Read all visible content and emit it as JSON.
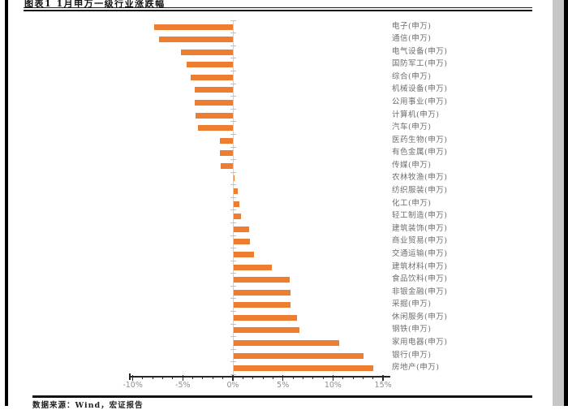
{
  "page": {
    "title": "图表1 1月申万一级行业涨跌幅",
    "source_note": "数据来源：Wind，宏证报告"
  },
  "colors": {
    "bar": "#ED7D31",
    "axis": "#262626",
    "zero_axis": "#cfcfcf",
    "row_tick": "#c2c2c2",
    "tick_label": "#8f8f8f",
    "category_label": "#6e6e6e",
    "page_border": "#000000",
    "edge_shadow": "#c6c6c6"
  },
  "chart_data": {
    "type": "bar",
    "orientation": "horizontal",
    "title": "图表1 1月申万一级行业涨跌幅",
    "unit": "%",
    "categories": [
      "电子(申万)",
      "通信(申万)",
      "电气设备(申万)",
      "国防军工(申万)",
      "综合(申万)",
      "机械设备(申万)",
      "公用事业(申万)",
      "计算机(申万)",
      "汽车(申万)",
      "医药生物(申万)",
      "有色金属(申万)",
      "传媒(申万)",
      "农林牧渔(申万)",
      "纺织服装(申万)",
      "化工(申万)",
      "轻工制造(申万)",
      "建筑装饰(申万)",
      "商业贸易(申万)",
      "交通运输(申万)",
      "建筑材料(申万)",
      "食品饮料(申万)",
      "非银金融(申万)",
      "采掘(申万)",
      "休闲服务(申万)",
      "钢铁(申万)",
      "家用电器(申万)",
      "银行(申万)",
      "房地产(申万)"
    ],
    "values": [
      -7.9,
      -7.4,
      -5.2,
      -4.6,
      -4.2,
      -3.8,
      -3.8,
      -3.7,
      -3.5,
      -1.3,
      -1.3,
      -1.2,
      0.1,
      0.4,
      0.6,
      0.7,
      1.5,
      1.6,
      2.0,
      3.8,
      5.6,
      5.7,
      5.7,
      6.3,
      6.6,
      10.5,
      13.0,
      13.9
    ],
    "x_ticks": [
      "-10%",
      "-5%",
      "0%",
      "5%",
      "10%",
      "15%"
    ],
    "x_tick_values": [
      -10,
      -5,
      0,
      5,
      10,
      15
    ],
    "xlim": [
      -10.3,
      15.7
    ],
    "minor_tick_step": 1,
    "grid": false,
    "legend": false,
    "bar_color": "#ED7D31",
    "sorted": "ascending-top-to-bottom"
  }
}
